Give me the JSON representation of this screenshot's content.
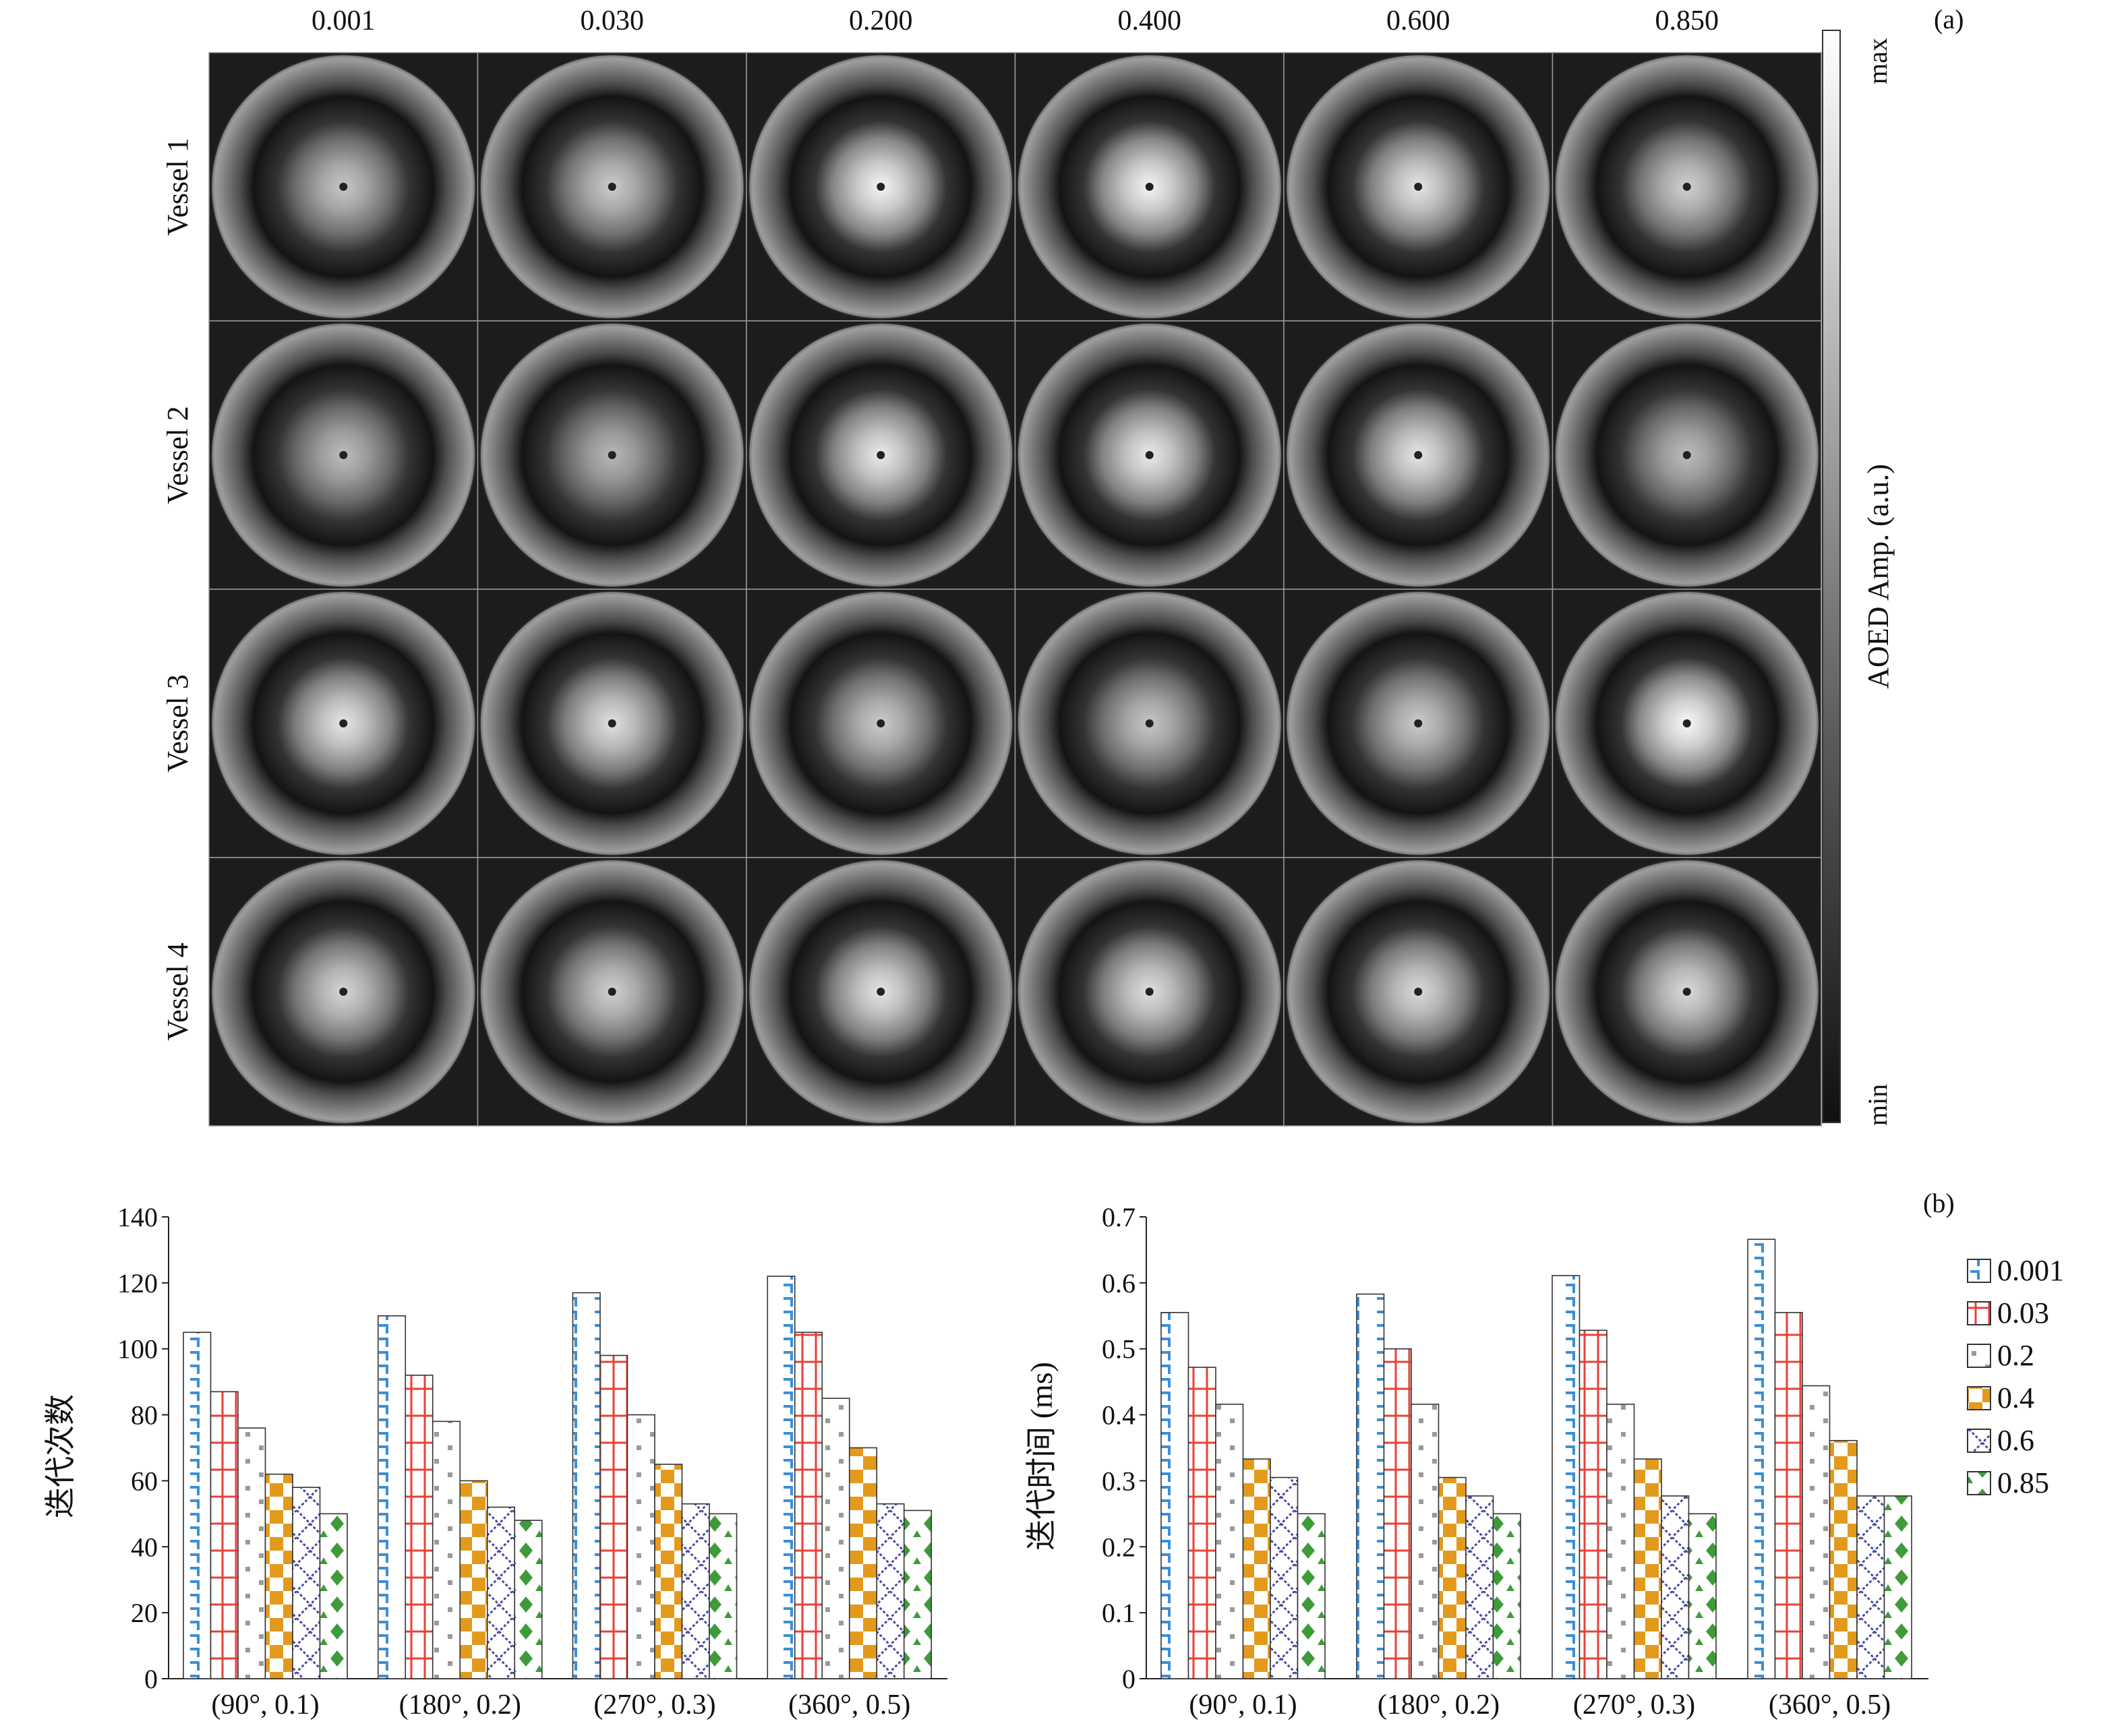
{
  "panel_a": {
    "label": "(a)",
    "column_labels": [
      "0.001",
      "0.030",
      "0.200",
      "0.400",
      "0.600",
      "0.850"
    ],
    "row_labels": [
      "Vessel 1",
      "Vessel 2",
      "Vessel 3",
      "Vessel 4"
    ],
    "colorbar": {
      "title": "AOED Amp. (a.u.)",
      "max_label": "max",
      "min_label": "min"
    },
    "peak_brightness": [
      [
        0.78,
        0.8,
        0.96,
        0.96,
        0.9,
        0.82
      ],
      [
        0.74,
        0.72,
        0.92,
        0.92,
        0.9,
        0.74
      ],
      [
        0.9,
        0.88,
        0.8,
        0.78,
        0.8,
        0.98
      ],
      [
        0.84,
        0.82,
        0.9,
        0.88,
        0.86,
        0.86
      ]
    ]
  },
  "panel_b": {
    "label": "(b)",
    "legend": [
      {
        "name": "0.001",
        "color": "#3a8fd9",
        "pattern": "ticks"
      },
      {
        "name": "0.03",
        "color": "#e8413a",
        "pattern": "ladder"
      },
      {
        "name": "0.2",
        "color": "#9a9a9a",
        "pattern": "dots"
      },
      {
        "name": "0.4",
        "color": "#e39a1c",
        "pattern": "checker"
      },
      {
        "name": "0.6",
        "color": "#4a4aa0",
        "pattern": "cross"
      },
      {
        "name": "0.85",
        "color": "#3f9b3a",
        "pattern": "diamond"
      }
    ]
  },
  "chart_data": [
    {
      "type": "bar",
      "categories": [
        "(90°, 0.1)",
        "(180°, 0.2)",
        "(270°, 0.3)",
        "(360°, 0.5)"
      ],
      "ylabel": "迭代次数",
      "ylim": [
        0,
        140
      ],
      "yticks": [
        0,
        20,
        40,
        60,
        80,
        100,
        120,
        140
      ],
      "series": [
        {
          "name": "0.001",
          "values": [
            105,
            110,
            117,
            122
          ]
        },
        {
          "name": "0.03",
          "values": [
            87,
            92,
            98,
            105
          ]
        },
        {
          "name": "0.2",
          "values": [
            76,
            78,
            80,
            85
          ]
        },
        {
          "name": "0.4",
          "values": [
            62,
            60,
            65,
            70
          ]
        },
        {
          "name": "0.6",
          "values": [
            58,
            52,
            53,
            53
          ]
        },
        {
          "name": "0.85",
          "values": [
            50,
            48,
            50,
            51
          ]
        }
      ]
    },
    {
      "type": "bar",
      "categories": [
        "(90°, 0.1)",
        "(180°, 0.2)",
        "(270°, 0.3)",
        "(360°, 0.5)"
      ],
      "ylabel": "迭代时间 (ms)",
      "ylim": [
        0,
        0.7
      ],
      "yticks": [
        "0",
        "0.1",
        "0.2",
        "0.3",
        "0.4",
        "0.5",
        "0.6",
        "0.7"
      ],
      "series": [
        {
          "name": "0.001",
          "values": [
            0.555,
            0.583,
            0.611,
            0.666
          ]
        },
        {
          "name": "0.03",
          "values": [
            0.472,
            0.5,
            0.528,
            0.555
          ]
        },
        {
          "name": "0.2",
          "values": [
            0.416,
            0.416,
            0.416,
            0.444
          ]
        },
        {
          "name": "0.4",
          "values": [
            0.333,
            0.305,
            0.333,
            0.361
          ]
        },
        {
          "name": "0.6",
          "values": [
            0.305,
            0.277,
            0.277,
            0.277
          ]
        },
        {
          "name": "0.85",
          "values": [
            0.25,
            0.25,
            0.25,
            0.277
          ]
        }
      ]
    }
  ]
}
